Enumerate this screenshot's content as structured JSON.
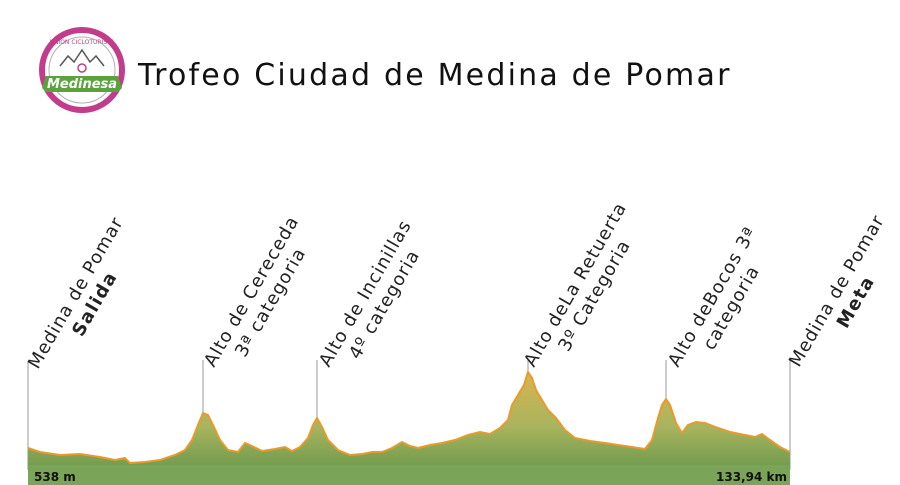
{
  "header": {
    "title": "Trofeo Ciudad de Medina de Pomar",
    "logo": {
      "top_text": "UNION CICLOTURISTA",
      "banner_text": "Medinesa"
    }
  },
  "profile": {
    "start_elevation": "538 m",
    "total_distance": "133,94 km",
    "fill_color": "#8fae68",
    "line_color": "#e89a2c",
    "points": [
      {
        "line1": "Medina de Pomar",
        "line2": "Salida"
      },
      {
        "line1": "Alto de Cereceda",
        "line2": "3ª categoria"
      },
      {
        "line1": "Alto de Incinillas",
        "line2": "4º categoria"
      },
      {
        "line1": "Alto deLa Retuerta",
        "line2": "3º Categoria"
      },
      {
        "line1": "Alto deBocos 3ª",
        "line2": "categoria"
      },
      {
        "line1": "Medina de Pomar",
        "line2": "Meta"
      }
    ]
  }
}
